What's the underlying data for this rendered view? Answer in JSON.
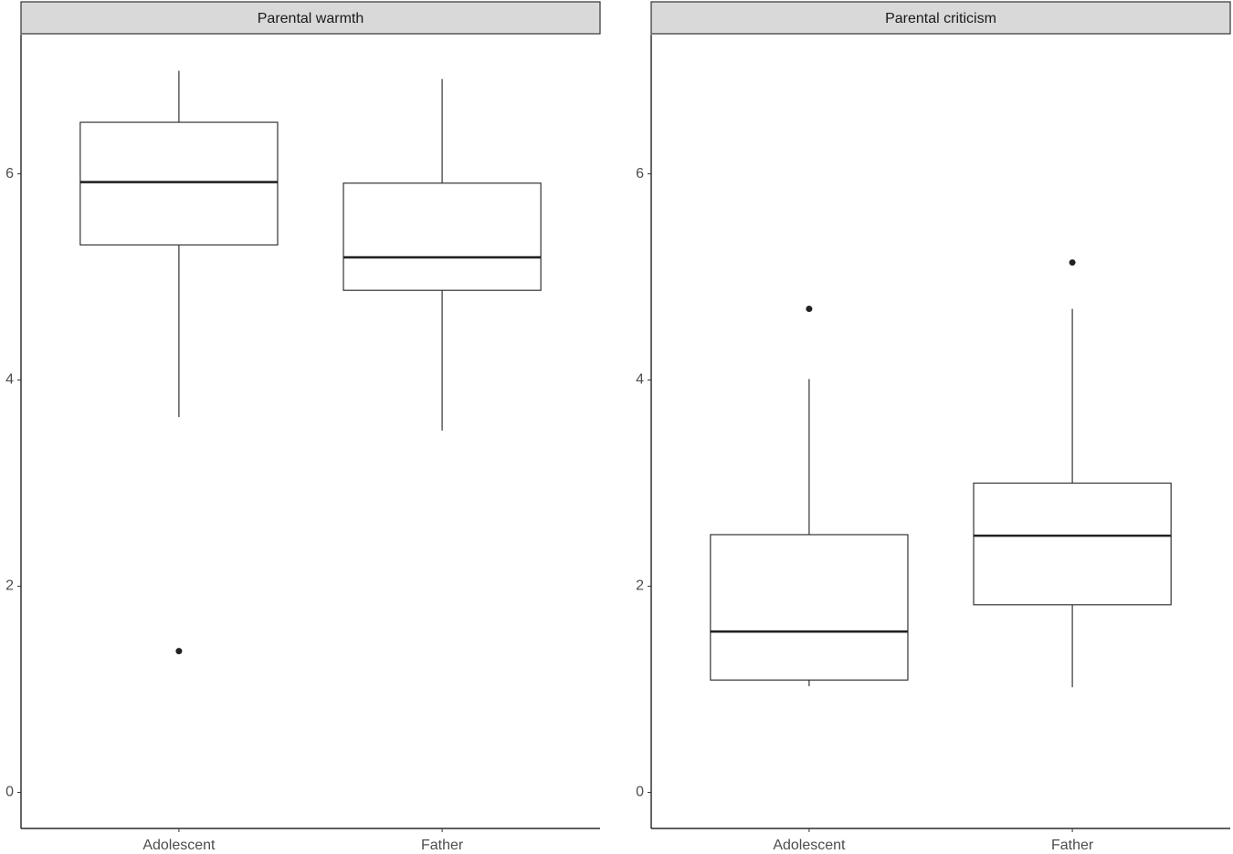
{
  "chart_data": [
    {
      "type": "box",
      "title": "Parental warmth",
      "categories": [
        "Adolescent",
        "Father"
      ],
      "boxes": [
        {
          "whisker_low": 3.64,
          "q1": 5.31,
          "median": 5.92,
          "q3": 6.5,
          "whisker_high": 7.0,
          "outliers": [
            1.37
          ]
        },
        {
          "whisker_low": 3.51,
          "q1": 4.87,
          "median": 5.19,
          "q3": 5.91,
          "whisker_high": 6.92,
          "outliers": []
        }
      ],
      "ylim": [
        -0.35,
        7.35
      ],
      "yticks": [
        0,
        2,
        4,
        6
      ],
      "color": "#ffffff",
      "grid": false
    },
    {
      "type": "box",
      "title": "Parental criticism",
      "categories": [
        "Adolescent",
        "Father"
      ],
      "boxes": [
        {
          "whisker_low": 1.03,
          "q1": 1.09,
          "median": 1.56,
          "q3": 2.5,
          "whisker_high": 4.01,
          "outliers": [
            4.69
          ]
        },
        {
          "whisker_low": 1.02,
          "q1": 1.82,
          "median": 2.49,
          "q3": 3.0,
          "whisker_high": 4.69,
          "outliers": [
            5.14
          ]
        }
      ],
      "ylim": [
        -0.35,
        7.35
      ],
      "yticks": [
        0,
        2,
        4,
        6
      ],
      "color": "#ffffff",
      "grid": false
    }
  ]
}
